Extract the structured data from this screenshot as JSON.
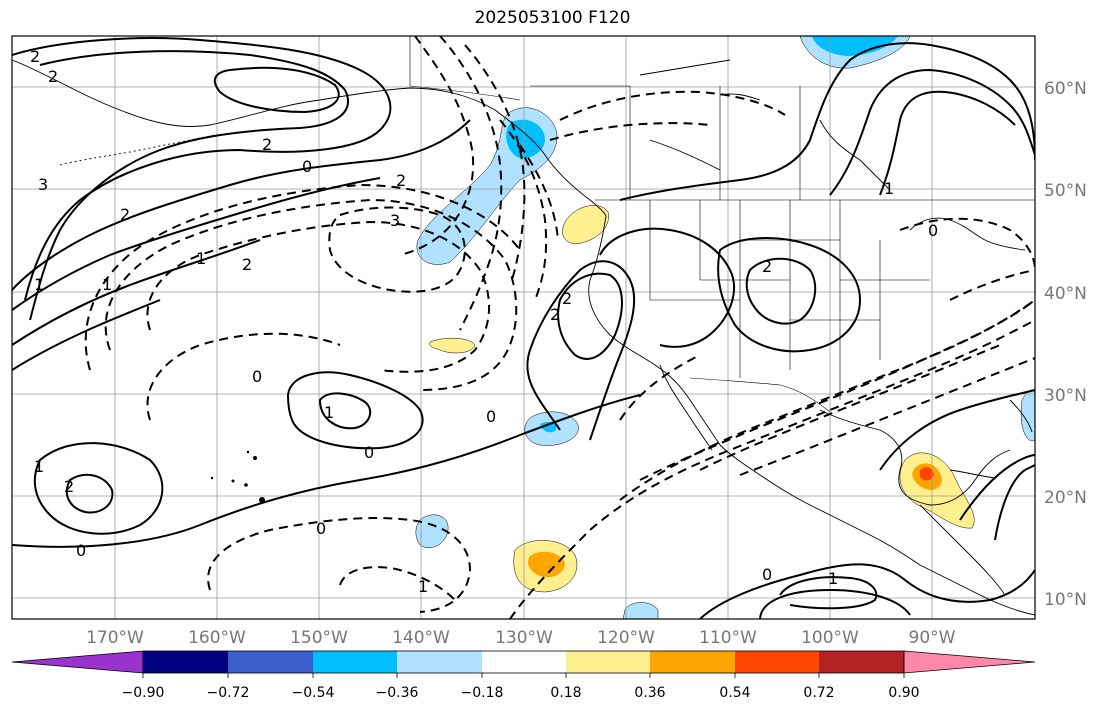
{
  "title": "2025053100 F120",
  "lat_labels": [
    "60°N",
    "50°N",
    "40°N",
    "30°N",
    "20°N",
    "10°N"
  ],
  "lon_labels": [
    "170°W",
    "160°W",
    "150°W",
    "140°W",
    "130°W",
    "120°W",
    "110°W",
    "100°W",
    "90°W"
  ],
  "contour_labels": [
    "2",
    "2",
    "3",
    "2",
    "0",
    "1",
    "2",
    "2",
    "1",
    "3",
    "2",
    "0",
    "1",
    "0",
    "0",
    "1",
    "2",
    "1",
    "0",
    "0",
    "1",
    "0",
    "1",
    "2",
    "2",
    "2",
    "1",
    "0"
  ],
  "colorbar": {
    "ticks": [
      "−0.90",
      "−0.72",
      "−0.54",
      "−0.36",
      "−0.18",
      "0.18",
      "0.36",
      "0.54",
      "0.72",
      "0.90"
    ],
    "colors": [
      "#9a32cd",
      "#000080",
      "#3a5fcd",
      "#00bfff",
      "#b0e2ff",
      "#ffffff",
      "#fff08f",
      "#ffa500",
      "#ff4500",
      "#b22222",
      "#ff88aa"
    ]
  },
  "colors": {
    "neg_light": "#b0e2ff",
    "neg_mid": "#00bfff",
    "pos_light": "#fff08f",
    "pos_mid": "#ffa500",
    "pos_strong": "#ff4500"
  }
}
